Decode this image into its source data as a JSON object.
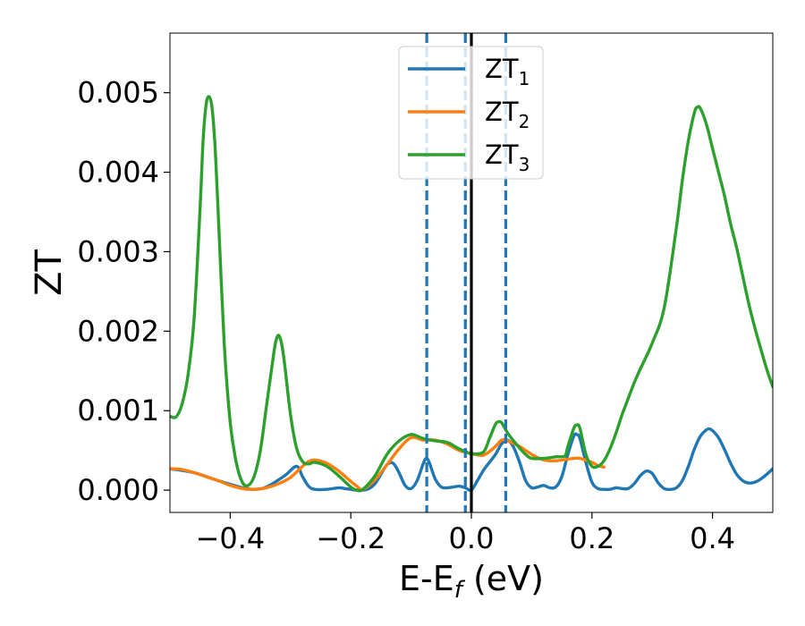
{
  "chart_data": {
    "type": "line",
    "xlabel": {
      "prefix": "E-E",
      "sub": "f",
      "suffix": " (eV)"
    },
    "ylabel": "ZT",
    "xlim": [
      -0.5,
      0.5
    ],
    "ylim": [
      -0.00028,
      0.00575
    ],
    "xticks": [
      -0.4,
      -0.2,
      0.0,
      0.2,
      0.4
    ],
    "xtick_labels": [
      "−0.4",
      "−0.2",
      "0.0",
      "0.2",
      "0.4"
    ],
    "yticks": [
      0,
      0.001,
      0.002,
      0.003,
      0.004,
      0.005
    ],
    "ytick_labels": [
      "0.000",
      "0.001",
      "0.002",
      "0.003",
      "0.004",
      "0.005"
    ],
    "grid": false,
    "legend_position": "top-center",
    "vlines": [
      {
        "x": -0.074,
        "style": "dashed",
        "color": "#1f77b4"
      },
      {
        "x": -0.01,
        "style": "dashed",
        "color": "#1f77b4"
      },
      {
        "x": 0.057,
        "style": "dashed",
        "color": "#1f77b4"
      },
      {
        "x": 0.0,
        "style": "solid",
        "color": "#000000"
      }
    ],
    "series": [
      {
        "name": "ZT",
        "sub": "1",
        "color": "#1f77b4",
        "x": [
          -0.5,
          -0.46,
          -0.42,
          -0.38,
          -0.36,
          -0.34,
          -0.31,
          -0.29,
          -0.28,
          -0.27,
          -0.26,
          -0.24,
          -0.22,
          -0.21,
          -0.2,
          -0.19,
          -0.18,
          -0.17,
          -0.16,
          -0.15,
          -0.14,
          -0.13,
          -0.12,
          -0.11,
          -0.1,
          -0.09,
          -0.08,
          -0.075,
          -0.07,
          -0.06,
          -0.05,
          -0.04,
          -0.03,
          -0.02,
          -0.01,
          0.0,
          0.01,
          0.02,
          0.03,
          0.04,
          0.05,
          0.06,
          0.07,
          0.08,
          0.09,
          0.1,
          0.11,
          0.12,
          0.13,
          0.14,
          0.15,
          0.16,
          0.17,
          0.175,
          0.18,
          0.19,
          0.2,
          0.21,
          0.22,
          0.23,
          0.24,
          0.25,
          0.26,
          0.27,
          0.28,
          0.29,
          0.3,
          0.31,
          0.32,
          0.33,
          0.34,
          0.35,
          0.36,
          0.37,
          0.38,
          0.39,
          0.395,
          0.4,
          0.41,
          0.42,
          0.43,
          0.44,
          0.45,
          0.46,
          0.47,
          0.48,
          0.49,
          0.5
        ],
        "y": [
          0.00027,
          0.00022,
          0.00012,
          3e-05,
          1e-05,
          4e-05,
          0.00018,
          0.0003,
          0.00017,
          5e-05,
          1e-05,
          1e-05,
          3e-05,
          2e-05,
          1e-05,
          0.0,
          0.0,
          2e-05,
          8e-05,
          0.0002,
          0.00032,
          0.00034,
          0.00022,
          6e-05,
          2e-05,
          0.00012,
          0.00033,
          0.0004,
          0.00035,
          0.00014,
          4e-05,
          3e-05,
          4e-05,
          5e-05,
          3e-05,
          0.0,
          0.00012,
          0.00025,
          0.00035,
          0.00045,
          0.00058,
          0.00063,
          0.00054,
          0.00035,
          0.00012,
          3e-05,
          4e-05,
          6e-05,
          3e-05,
          4e-05,
          0.00017,
          0.00045,
          0.00068,
          0.0007,
          0.00065,
          0.00035,
          0.0001,
          2e-05,
          1e-05,
          1e-05,
          3e-05,
          2e-05,
          2e-05,
          8e-05,
          0.00018,
          0.00024,
          0.00021,
          9e-05,
          2e-05,
          1e-05,
          3e-05,
          0.00012,
          0.0003,
          0.00052,
          0.00068,
          0.00076,
          0.00077,
          0.00075,
          0.00066,
          0.00051,
          0.00034,
          0.0002,
          0.00012,
          9e-05,
          0.0001,
          0.00014,
          0.0002,
          0.00027
        ]
      },
      {
        "name": "ZT",
        "sub": "2",
        "color": "#ff7f0e",
        "x": [
          -0.5,
          -0.48,
          -0.46,
          -0.44,
          -0.42,
          -0.4,
          -0.38,
          -0.36,
          -0.34,
          -0.32,
          -0.3,
          -0.28,
          -0.27,
          -0.26,
          -0.24,
          -0.22,
          -0.2,
          -0.19,
          -0.18,
          -0.16,
          -0.14,
          -0.12,
          -0.1,
          -0.08,
          -0.06,
          -0.04,
          -0.02,
          0.0,
          0.02,
          0.04,
          0.05,
          0.06,
          0.08,
          0.1,
          0.12,
          0.14,
          0.16,
          0.17,
          0.18,
          0.2,
          0.21,
          0.22
        ],
        "y": [
          0.00027,
          0.00026,
          0.00022,
          0.00017,
          0.00012,
          6e-05,
          2e-05,
          1e-05,
          3e-05,
          8e-05,
          0.00016,
          0.0003,
          0.00036,
          0.00038,
          0.00034,
          0.00024,
          0.00011,
          5e-05,
          1e-05,
          0.00013,
          0.00032,
          0.00052,
          0.00066,
          0.00063,
          0.00063,
          0.00058,
          0.0005,
          0.00046,
          0.00044,
          0.00055,
          0.00063,
          0.00062,
          0.00055,
          0.00045,
          0.00038,
          0.00037,
          0.00039,
          0.0004,
          0.0004,
          0.00035,
          0.00031,
          0.00029
        ]
      },
      {
        "name": "ZT",
        "sub": "3",
        "color": "#2ca02c",
        "x": [
          -0.5,
          -0.49,
          -0.48,
          -0.47,
          -0.46,
          -0.45,
          -0.445,
          -0.44,
          -0.435,
          -0.43,
          -0.425,
          -0.42,
          -0.41,
          -0.4,
          -0.39,
          -0.38,
          -0.37,
          -0.36,
          -0.35,
          -0.34,
          -0.33,
          -0.325,
          -0.32,
          -0.315,
          -0.31,
          -0.3,
          -0.29,
          -0.28,
          -0.27,
          -0.26,
          -0.24,
          -0.22,
          -0.2,
          -0.19,
          -0.18,
          -0.16,
          -0.14,
          -0.12,
          -0.1,
          -0.08,
          -0.06,
          -0.04,
          -0.02,
          0.0,
          0.02,
          0.03,
          0.04,
          0.045,
          0.05,
          0.06,
          0.07,
          0.08,
          0.09,
          0.1,
          0.12,
          0.14,
          0.155,
          0.16,
          0.17,
          0.175,
          0.18,
          0.19,
          0.2,
          0.21,
          0.22,
          0.23,
          0.24,
          0.25,
          0.26,
          0.27,
          0.28,
          0.3,
          0.32,
          0.34,
          0.35,
          0.36,
          0.37,
          0.375,
          0.38,
          0.39,
          0.4,
          0.41,
          0.42,
          0.43,
          0.44,
          0.45,
          0.46,
          0.47,
          0.48,
          0.49,
          0.5
        ],
        "y": [
          0.00093,
          0.00092,
          0.00108,
          0.00145,
          0.00215,
          0.00355,
          0.0044,
          0.00485,
          0.00495,
          0.0048,
          0.0043,
          0.0035,
          0.00185,
          0.00085,
          0.00035,
          0.0001,
          6e-05,
          0.00018,
          0.0005,
          0.00105,
          0.0016,
          0.00185,
          0.00195,
          0.00185,
          0.0016,
          0.00095,
          0.00053,
          0.00036,
          0.00033,
          0.00035,
          0.0003,
          0.00018,
          4e-05,
          0.0,
          1e-05,
          0.00018,
          0.00045,
          0.00062,
          0.0007,
          0.00065,
          0.00062,
          0.0006,
          0.00052,
          0.00046,
          0.00048,
          0.00065,
          0.00083,
          0.00086,
          0.00085,
          0.00072,
          0.00062,
          0.00053,
          0.00045,
          0.0004,
          0.0004,
          0.00042,
          0.00043,
          0.00055,
          0.00078,
          0.00082,
          0.00078,
          0.00045,
          0.0003,
          0.0003,
          0.00037,
          0.00052,
          0.00072,
          0.00095,
          0.00115,
          0.00135,
          0.00152,
          0.00185,
          0.0023,
          0.0033,
          0.0039,
          0.0044,
          0.00475,
          0.00482,
          0.0048,
          0.0046,
          0.0043,
          0.004,
          0.0037,
          0.00335,
          0.00305,
          0.0027,
          0.00235,
          0.00205,
          0.00178,
          0.00152,
          0.0013
        ]
      }
    ]
  }
}
